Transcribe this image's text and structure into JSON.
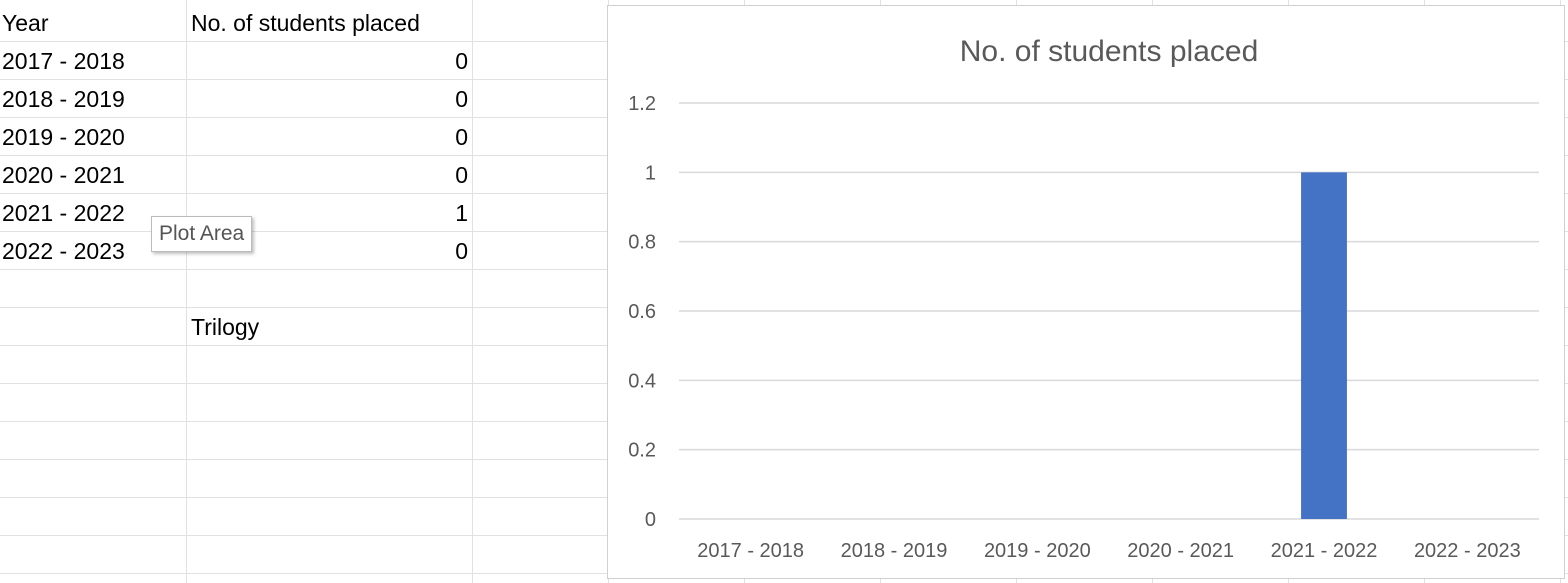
{
  "spreadsheet": {
    "headers": {
      "year": "Year",
      "placed": "No. of students placed"
    },
    "rows": [
      {
        "year": "2017 - 2018",
        "placed": "0"
      },
      {
        "year": "2018 - 2019",
        "placed": "0"
      },
      {
        "year": "2019 - 2020",
        "placed": "0"
      },
      {
        "year": "2020 - 2021",
        "placed": "0"
      },
      {
        "year": "2021 - 2022",
        "placed": "1"
      },
      {
        "year": "2022 - 2023",
        "placed": "0"
      }
    ],
    "extra_text": "Trilogy"
  },
  "tooltip": {
    "text": "Plot Area"
  },
  "colors": {
    "bar": "#4472c4",
    "gridline": "#d9d9d9",
    "text": "#595959"
  },
  "chart_data": {
    "type": "bar",
    "title": "No. of students placed",
    "categories": [
      "2017 - 2018",
      "2018 - 2019",
      "2019 - 2020",
      "2020 - 2021",
      "2021 - 2022",
      "2022 - 2023"
    ],
    "values": [
      0,
      0,
      0,
      0,
      1,
      0
    ],
    "ylim": [
      0,
      1.2
    ],
    "yticks": [
      "0",
      "0.2",
      "0.4",
      "0.6",
      "0.8",
      "1",
      "1.2"
    ],
    "grid": true,
    "legend": "none",
    "xlabel": "",
    "ylabel": ""
  }
}
